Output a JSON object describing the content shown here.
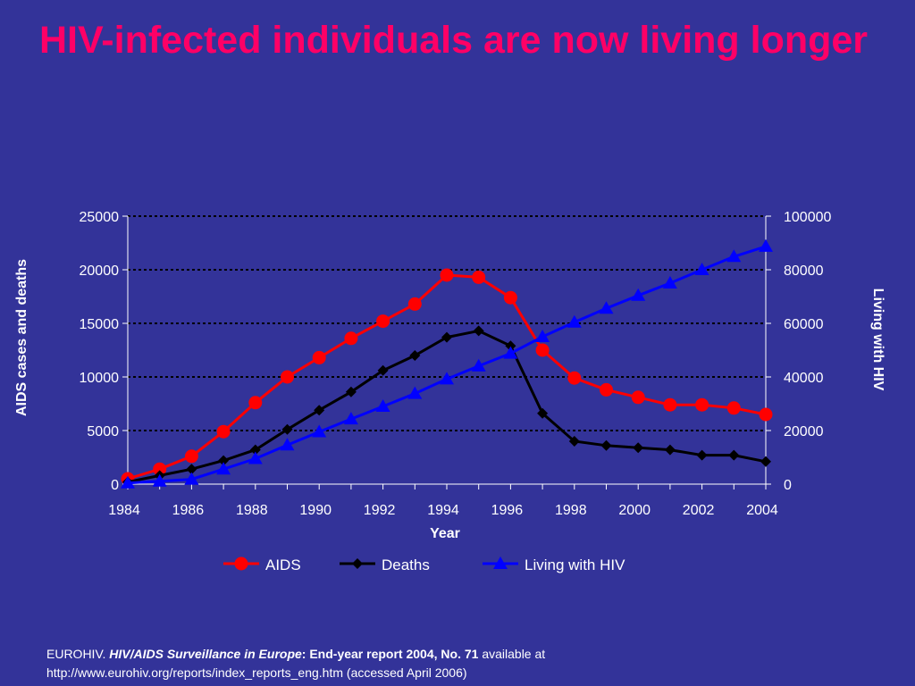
{
  "slide": {
    "title": "HIV-infected individuals are now living longer"
  },
  "footer": {
    "source_org": "EUROHIV. ",
    "publication": "HIV/AIDS Surveillance in Europe",
    "report": ": End-year report 2004, No. 71",
    "availability": " available at",
    "url_line": "http://www.eurohiv.org/reports/index_reports_eng.htm (accessed April  2006)"
  },
  "chart_data": {
    "type": "line",
    "title": "",
    "xlabel": "Year",
    "ylabel": "AIDS cases and deaths",
    "y2label": "Living with HIV",
    "x": [
      1984,
      1985,
      1986,
      1987,
      1988,
      1989,
      1990,
      1991,
      1992,
      1993,
      1994,
      1995,
      1996,
      1997,
      1998,
      1999,
      2000,
      2001,
      2002,
      2003,
      2004
    ],
    "x_ticks": [
      "1984",
      "1986",
      "1988",
      "1990",
      "1992",
      "1994",
      "1996",
      "1998",
      "2000",
      "2002",
      "2004"
    ],
    "ylim": [
      0,
      25000
    ],
    "y_ticks": [
      "0",
      "5000",
      "10000",
      "15000",
      "20000",
      "25000"
    ],
    "y2lim": [
      0,
      100000
    ],
    "y2_ticks": [
      "0",
      "20000",
      "40000",
      "60000",
      "80000",
      "100000"
    ],
    "grid": "horizontal dashed",
    "legend_position": "bottom",
    "series": [
      {
        "name": "AIDS",
        "axis": "left",
        "color": "#ff0000",
        "marker": "circle",
        "values": [
          500,
          1400,
          2600,
          4900,
          7600,
          10000,
          11800,
          13600,
          15200,
          16800,
          19500,
          19300,
          17400,
          12500,
          9900,
          8800,
          8100,
          7400,
          7400,
          7100,
          6500
        ]
      },
      {
        "name": "Deaths",
        "axis": "left",
        "color": "#000000",
        "marker": "diamond",
        "values": [
          200,
          800,
          1400,
          2200,
          3200,
          5100,
          6900,
          8600,
          10600,
          12000,
          13700,
          14300,
          12900,
          6600,
          4000,
          3600,
          3400,
          3200,
          2700,
          2700,
          2100
        ]
      },
      {
        "name": "Living with HIV",
        "axis": "right",
        "color": "#0000ff",
        "marker": "triangle",
        "values": [
          400,
          1100,
          1800,
          5600,
          9500,
          14600,
          19500,
          24300,
          29000,
          33800,
          39200,
          44100,
          48800,
          55000,
          60400,
          65600,
          70400,
          75000,
          80000,
          84900,
          88700
        ]
      }
    ]
  }
}
